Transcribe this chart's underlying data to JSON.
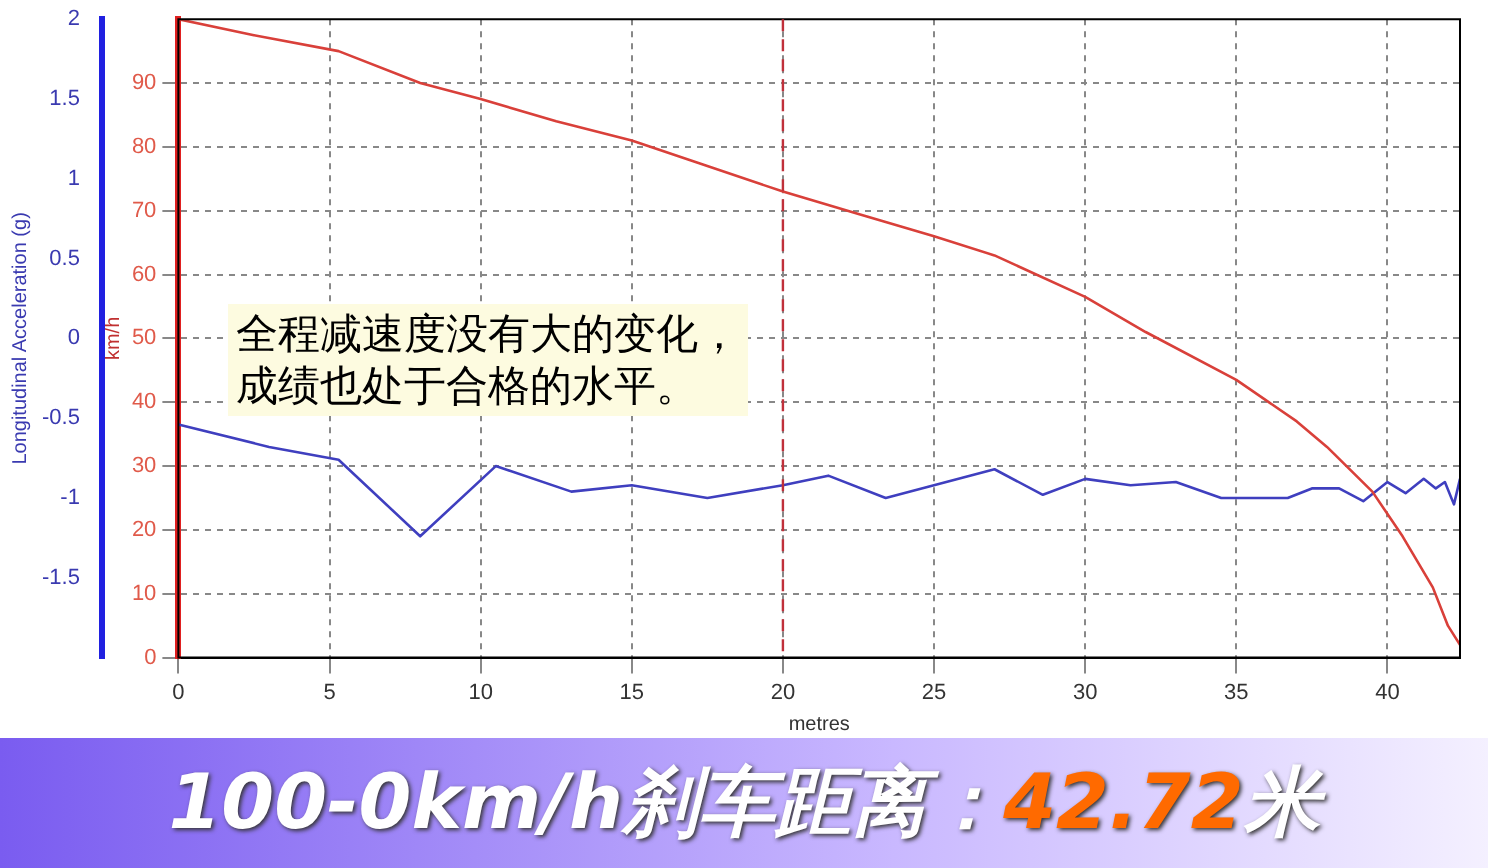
{
  "chart_data": {
    "type": "line",
    "title": "100-0km/h刹车距离：42.72米",
    "xlabel": "metres",
    "ylabel": "km/h",
    "y2label": "Longitudinal Acceleration (g)",
    "annotations": [
      "全程减速度没有大的变化，",
      "成绩也处于合格的水平。"
    ],
    "xlim": [
      0,
      42.4
    ],
    "xticks": [
      0,
      5,
      10,
      15,
      20,
      25,
      30,
      35,
      40
    ],
    "ylim": [
      0,
      100
    ],
    "yticks": [
      0,
      10,
      20,
      30,
      40,
      50,
      60,
      70,
      80,
      90
    ],
    "y2lim": [
      -2,
      2
    ],
    "y2ticks": [
      -1.5,
      -1,
      -0.5,
      0,
      0.5,
      1,
      1.5,
      2
    ],
    "grid": true,
    "legend": false,
    "marker": "none",
    "line_style": "solid",
    "ref_lines": [
      {
        "axis": "x",
        "value": 20,
        "color": "#c0303a",
        "line_style": "dashed"
      }
    ],
    "series": [
      {
        "color": "#d9403a",
        "x": [
          0,
          2.5,
          5.3,
          8,
          10,
          12.5,
          15,
          17.5,
          20,
          22.5,
          25,
          27,
          30,
          32,
          35,
          37,
          38,
          39.5,
          40.5,
          41.5,
          42,
          42.4
        ],
        "values": [
          100,
          97.5,
          95,
          90,
          87.5,
          84,
          81,
          77,
          73,
          69.5,
          66,
          63,
          56.5,
          51,
          43.5,
          37,
          33,
          26,
          19,
          11,
          5,
          2
        ]
      },
      {
        "color": "#3f3fbf",
        "axis": "y2",
        "x": [
          0,
          3,
          5.3,
          8,
          10.5,
          13,
          15,
          17.5,
          20,
          21.5,
          23.4,
          27,
          28.6,
          30,
          31.5,
          33,
          34.5,
          36.7,
          37.5,
          38.4,
          39.2,
          40,
          40.6,
          41.2,
          41.6,
          41.9,
          42.2,
          42.4
        ],
        "values": [
          -0.54,
          -0.68,
          -0.76,
          -1.24,
          -0.8,
          -0.96,
          -0.92,
          -1.0,
          -0.92,
          -0.86,
          -1.0,
          -0.82,
          -0.98,
          -0.88,
          -0.92,
          -0.9,
          -1.0,
          -1.0,
          -0.94,
          -0.94,
          -1.02,
          -0.9,
          -0.97,
          -0.88,
          -0.94,
          -0.9,
          -1.04,
          -0.88
        ]
      }
    ]
  }
}
